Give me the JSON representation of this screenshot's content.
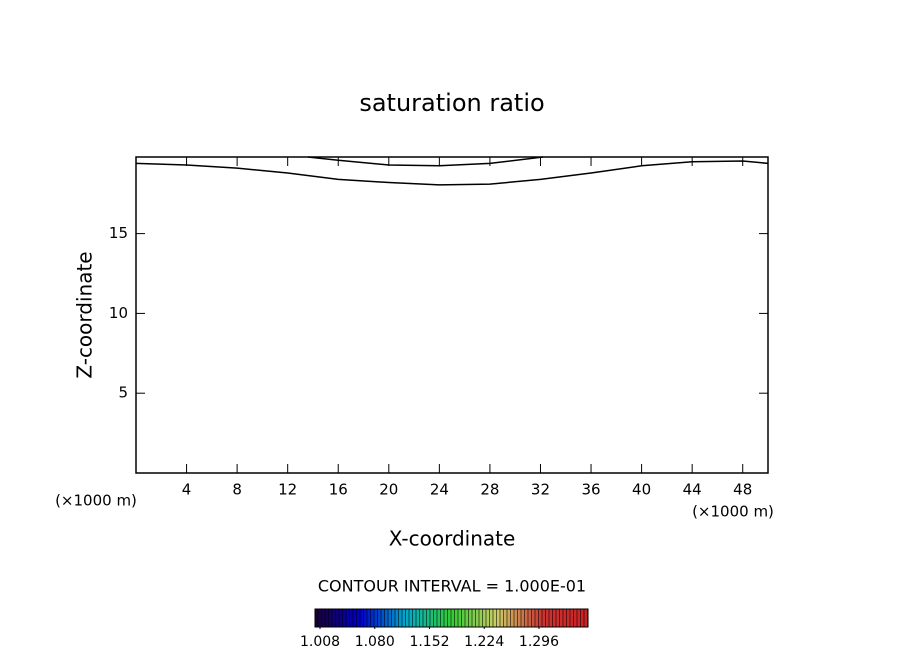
{
  "chart_data": {
    "type": "contour",
    "title": "saturation ratio",
    "xlabel": "X-coordinate",
    "ylabel": "Z-coordinate",
    "xunit_left": "(×1000 m)",
    "xunit_right": "(×1000 m)",
    "xlim": [
      0,
      50
    ],
    "ylim": [
      0,
      19.8
    ],
    "xticks": [
      4,
      8,
      12,
      16,
      20,
      24,
      28,
      32,
      36,
      40,
      44,
      48
    ],
    "yticks": [
      5,
      10,
      15
    ],
    "series": [
      {
        "color": "#000000",
        "x": [
          0,
          4,
          8,
          12,
          16,
          20,
          24,
          28,
          32,
          36,
          40,
          44,
          48,
          50
        ],
        "values": [
          19.4,
          19.3,
          19.1,
          18.8,
          18.4,
          18.2,
          18.05,
          18.1,
          18.4,
          18.8,
          19.25,
          19.5,
          19.55,
          19.4
        ]
      },
      {
        "color": "#000000",
        "x": [
          13.6,
          16,
          20,
          24,
          28,
          32.2
        ],
        "values": [
          19.8,
          19.6,
          19.3,
          19.25,
          19.4,
          19.8
        ]
      }
    ],
    "contour_interval": "CONTOUR INTERVAL = 1.000E-01",
    "colorbar": {
      "lim": [
        1.0014,
        1.3605
      ],
      "ticks": [
        1.008,
        {
          "value": 1.08,
          "label": "1.080"
        },
        1.152,
        1.224,
        1.296
      ],
      "colors": [
        "#1a0033",
        "#0000cc",
        "#00aacc",
        "#33cc33",
        "#cccc66",
        "#cc3333",
        "#cc2222"
      ]
    }
  }
}
